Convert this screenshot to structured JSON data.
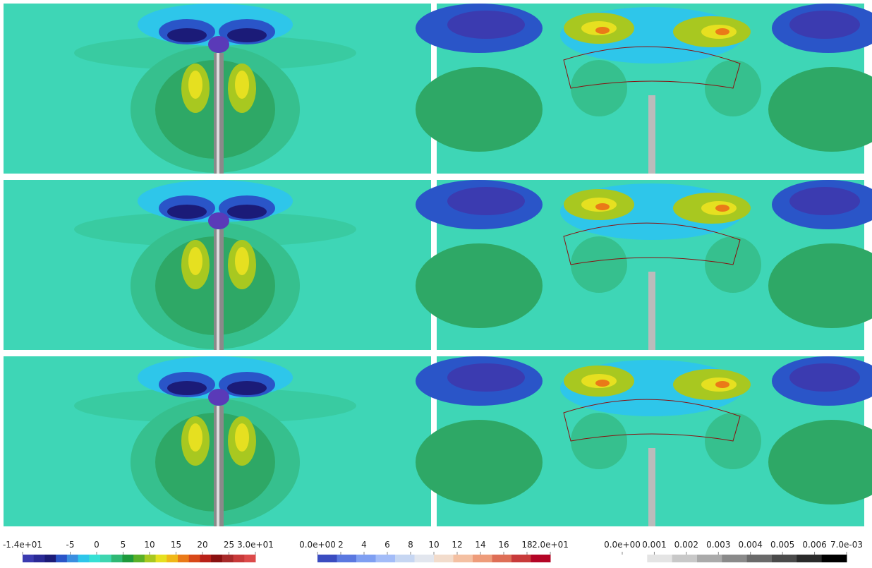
{
  "colorbars": [
    {
      "range": [
        -14,
        30
      ],
      "ticks": [
        {
          "value": -14,
          "label": "-1.4e+01"
        },
        -5,
        0,
        5,
        10,
        15,
        20,
        25,
        {
          "value": 30,
          "label": "3.0e+01"
        }
      ],
      "colors": [
        "#3b3bb0",
        "#2a2a96",
        "#1b1b78",
        "#2a55c8",
        "#3a8ee0",
        "#2ec6ea",
        "#36e0d4",
        "#3ed6b0",
        "#2fb874",
        "#1e9a3c",
        "#5ab028",
        "#a8c820",
        "#e6e020",
        "#f0b818",
        "#ea7a18",
        "#d84818",
        "#b82018",
        "#8a1010",
        "#a82a2a",
        "#c83a3a",
        "#dc4a4a"
      ]
    },
    {
      "range": [
        0,
        20
      ],
      "ticks": [
        {
          "value": 0,
          "label": "0.0e+00"
        },
        2,
        4,
        6,
        8,
        10,
        12,
        14,
        16,
        18,
        {
          "value": 20,
          "label": "2.0e+01"
        }
      ],
      "colors": [
        "#3a4cc0",
        "#5a78e0",
        "#7f9ff2",
        "#a3bcf8",
        "#c6d6f2",
        "#e2e6ee",
        "#f2dccc",
        "#f4c0a2",
        "#ee9c7a",
        "#de6e56",
        "#c83a3a",
        "#b40426"
      ]
    },
    {
      "range": [
        0,
        0.007
      ],
      "ticks": [
        {
          "value": 0,
          "label": "0.0e+00"
        },
        0.001,
        0.002,
        0.003,
        0.004,
        0.005,
        0.006,
        {
          "value": 0.007,
          "label": "7.0e-03"
        }
      ],
      "colors": [
        "#ffffff",
        "#e4e4e4",
        "#c8c8c8",
        "#aaaaaa",
        "#8a8a8a",
        "#6a6a6a",
        "#4a4a4a",
        "#2a2a2a",
        "#000000"
      ]
    }
  ]
}
